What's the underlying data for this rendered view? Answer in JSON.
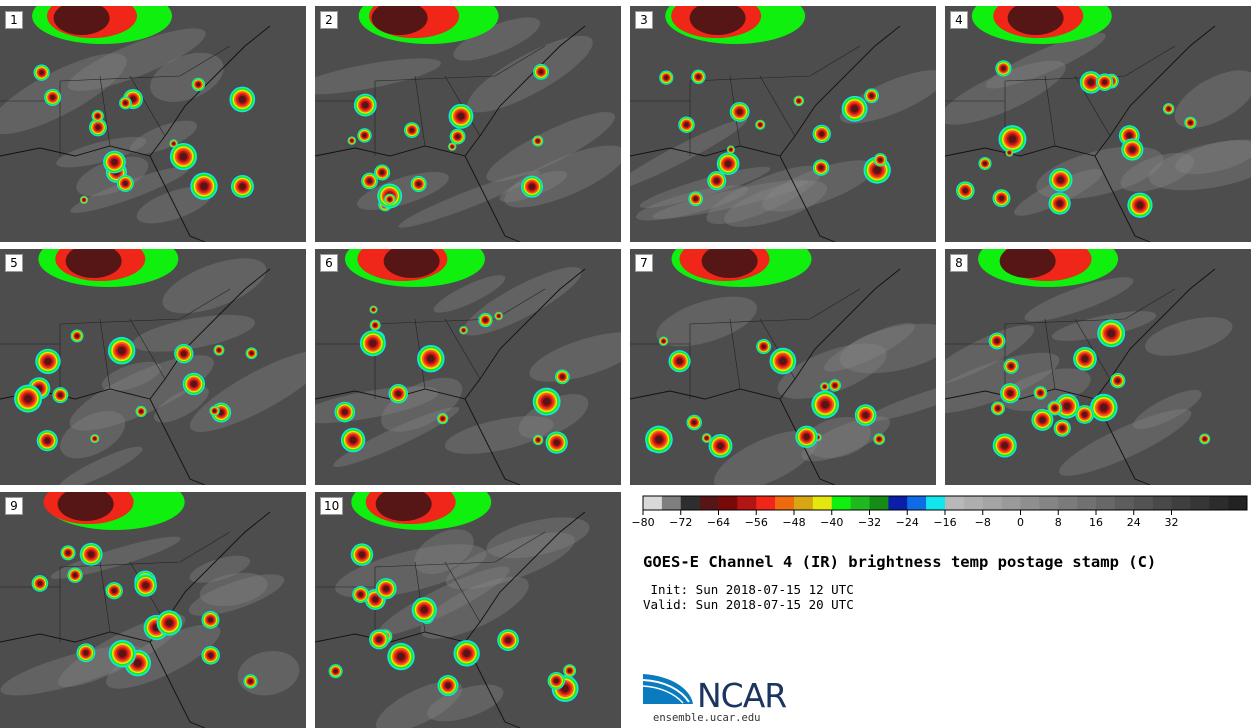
{
  "panels": [
    {
      "label": "1"
    },
    {
      "label": "2"
    },
    {
      "label": "3"
    },
    {
      "label": "4"
    },
    {
      "label": "5"
    },
    {
      "label": "6"
    },
    {
      "label": "7"
    },
    {
      "label": "8"
    },
    {
      "label": "9"
    },
    {
      "label": "10"
    }
  ],
  "colorbar": {
    "colors": [
      "#d9d9d9",
      "#7f7f7f",
      "#2e2e2e",
      "#561616",
      "#7a0a0a",
      "#b31414",
      "#ef2618",
      "#ef6a0f",
      "#d6a713",
      "#e5e50f",
      "#0ff00f",
      "#1fb91f",
      "#158c15",
      "#0a1ea8",
      "#0f6be6",
      "#12e6ec",
      "#b8b8b8",
      "#aeaeae",
      "#a4a4a4",
      "#9a9a9a",
      "#8f8f8f",
      "#858585",
      "#7b7b7b",
      "#717171",
      "#676767",
      "#5d5d5d",
      "#535353",
      "#494949",
      "#3f3f3f",
      "#363636",
      "#2c2c2c",
      "#222222"
    ],
    "tick_labels": [
      "−80",
      "−72",
      "−64",
      "−56",
      "−48",
      "−40",
      "−32",
      "−24",
      "−16",
      "−8",
      "0",
      "8",
      "16",
      "24",
      "32"
    ]
  },
  "title": "GOES-E Channel 4 (IR) brightness temp postage stamp (C)",
  "init_line": " Init: Sun 2018-07-15 12 UTC",
  "valid_line": "Valid: Sun 2018-07-15 20 UTC",
  "logo": {
    "word": "NCAR",
    "url": "ensemble.ucar.edu",
    "color": "#0a7bbf"
  }
}
